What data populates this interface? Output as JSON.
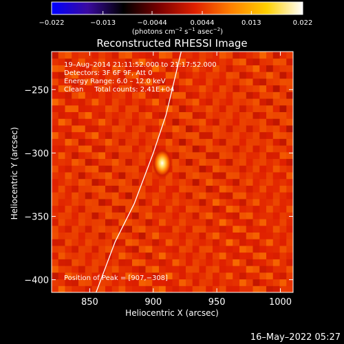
{
  "chart_data": {
    "type": "heatmap",
    "title": "Reconstructed RHESSI Image",
    "xlabel": "Heliocentric X (arcsec)",
    "ylabel": "Heliocentric Y (arcsec)",
    "xlim": [
      820,
      1010
    ],
    "ylim": [
      -410,
      -220
    ],
    "x_ticks": [
      850,
      900,
      950,
      1000
    ],
    "x_tick_labels": [
      "850",
      "900",
      "950",
      "1000"
    ],
    "y_ticks": [
      -250,
      -300,
      -350,
      -400
    ],
    "y_tick_labels": [
      "−250",
      "−300",
      "−350",
      "−400"
    ],
    "colorbar": {
      "min": -0.022,
      "max": 0.022,
      "ticks": [
        -0.022,
        -0.013,
        -0.0044,
        0.0044,
        0.013,
        0.022
      ],
      "tick_labels": [
        "−0.022",
        "−0.013",
        "−0.0044",
        "0.0044",
        "0.013",
        "0.022"
      ],
      "unit_label": "(photons cm",
      "unit_exp1": "−2",
      "unit_mid": " s",
      "unit_exp2": "−1",
      "unit_mid2": " asec",
      "unit_exp3": "−2",
      "unit_end": ")",
      "colors": [
        "#0000ff",
        "#3a0aa0",
        "#000000",
        "#7a0000",
        "#e02000",
        "#ff8000",
        "#ffd000",
        "#ffffff"
      ]
    },
    "source_peak": {
      "x": 907,
      "y": -308,
      "peak_value": 0.022,
      "background_value": 0.0044
    },
    "limb_curve": {
      "x": [
        855,
        870,
        885,
        900,
        910,
        922
      ],
      "y": [
        -410,
        -370,
        -340,
        -300,
        -270,
        -220
      ]
    },
    "annotations": [
      "19–Aug–2014 21:11:52.000 to 21:17:52.000",
      "Detectors: 3F 6F 9F, Att 0",
      "Energy Range: 6.0 – 12.0 keV",
      "Clean     Total counts: 2.41E+04"
    ],
    "peak_label": "Position of Peak = [907,−308]",
    "timestamp": "16–May–2022 05:27"
  }
}
